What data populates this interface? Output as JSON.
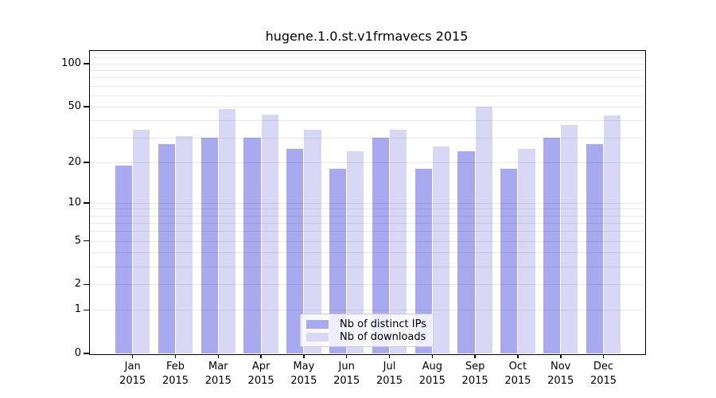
{
  "chart_data": {
    "type": "bar",
    "title": "hugene.1.0.st.v1frmavecs 2015",
    "year_label": "2015",
    "categories": [
      "Jan",
      "Feb",
      "Mar",
      "Apr",
      "May",
      "Jun",
      "Jul",
      "Aug",
      "Sep",
      "Oct",
      "Nov",
      "Dec"
    ],
    "series": [
      {
        "name": "Nb of distinct IPs",
        "color": "#a9a9f0",
        "values": [
          19,
          27,
          30,
          30,
          25,
          18,
          30,
          18,
          24,
          18,
          30,
          27
        ]
      },
      {
        "name": "Nb of downloads",
        "color": "#d8d8f6",
        "values": [
          34,
          31,
          48,
          44,
          34,
          24,
          34,
          26,
          50,
          25,
          37,
          43
        ]
      }
    ],
    "xlabel": "",
    "ylabel": "",
    "yscale": "log1p",
    "ylim": [
      0,
      124
    ],
    "yticks": [
      100,
      50,
      20,
      10,
      5,
      2,
      1,
      0
    ],
    "gridlines": [
      1,
      2,
      3,
      4,
      5,
      6,
      7,
      8,
      9,
      10,
      20,
      30,
      40,
      50,
      60,
      70,
      80,
      90,
      100,
      110,
      120
    ],
    "grid": "horizontal",
    "legend_position": "bottom-center"
  }
}
